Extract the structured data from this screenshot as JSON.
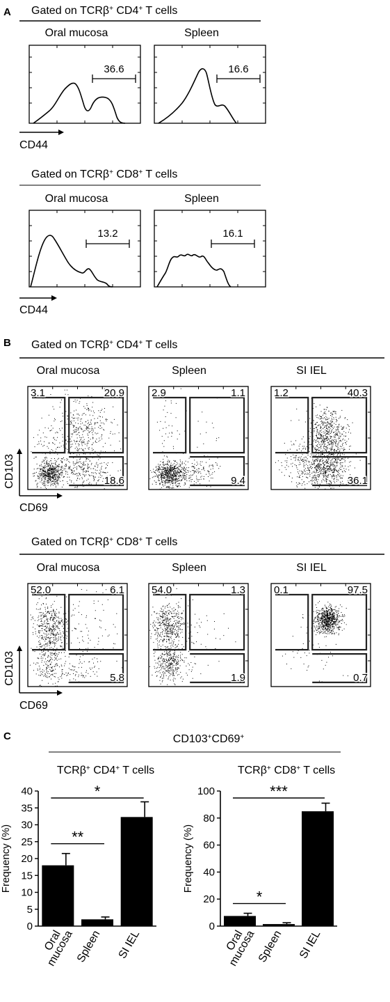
{
  "panel_a": {
    "letter": "A",
    "cd4": {
      "title_prefix": "Gated on TCRβ",
      "title_sup1": "+",
      "title_mid": " CD4",
      "title_sup2": "+",
      "title_suffix": " T cells",
      "tissue_1": "Oral mucosa",
      "tissue_2": "Spleen",
      "gate_1": "36.6",
      "gate_2": "16.6"
    },
    "cd8": {
      "title_prefix": "Gated on TCRβ",
      "title_sup1": "+",
      "title_mid": " CD8",
      "title_sup2": "+",
      "title_suffix": " T cells",
      "tissue_1": "Oral mucosa",
      "tissue_2": "Spleen",
      "gate_1": "13.2",
      "gate_2": "16.1"
    },
    "x_axis_label": "CD44"
  },
  "panel_b": {
    "letter": "B",
    "cd4": {
      "title_prefix": "Gated on TCRβ",
      "title_sup1": "+",
      "title_mid": " CD4",
      "title_sup2": "+",
      "title_suffix": " T cells",
      "tissues": [
        "Oral mucosa",
        "Spleen",
        "SI IEL"
      ],
      "quadrants": [
        {
          "tl": "3.1",
          "tr": "20.9",
          "br": "18.6"
        },
        {
          "tl": "2.9",
          "tr": "1.1",
          "br": "9.4"
        },
        {
          "tl": "1.2",
          "tr": "40.3",
          "br": "36.1"
        }
      ]
    },
    "cd8": {
      "title_prefix": "Gated on TCRβ",
      "title_sup1": "+",
      "title_mid": " CD8",
      "title_sup2": "+",
      "title_suffix": " T cells",
      "tissues": [
        "Oral mucosa",
        "Spleen",
        "SI IEL"
      ],
      "quadrants": [
        {
          "tl": "52.0",
          "tr": "6.1",
          "br": "5.8"
        },
        {
          "tl": "54.0",
          "tr": "1.3",
          "br": "1.9"
        },
        {
          "tl": "0.1",
          "tr": "97.5",
          "br": "0.7"
        }
      ]
    },
    "y_axis_label": "CD103",
    "x_axis_label": "CD69"
  },
  "panel_c": {
    "letter": "C",
    "header_1": "CD103",
    "header_sup1": "+",
    "header_2": "CD69",
    "header_sup2": "+"
  },
  "chart_data": [
    {
      "type": "bar",
      "title_prefix": "TCRβ",
      "title_sup1": "+",
      "title_mid": " CD4",
      "title_sup2": "+",
      "title_suffix": " T cells",
      "categories": [
        [
          "Oral",
          "mucosa"
        ],
        [
          "Spleen"
        ],
        [
          "SI IEL"
        ]
      ],
      "values": [
        18,
        2,
        32.3
      ],
      "errors": [
        3.5,
        0.7,
        4.5
      ],
      "ylabel": "Frequency (%)",
      "ylim": [
        0,
        40
      ],
      "yticks": [
        0,
        5,
        10,
        15,
        20,
        25,
        30,
        35,
        40
      ],
      "significance": [
        {
          "from": 0,
          "to": 1,
          "label": "**"
        },
        {
          "from": 0,
          "to": 2,
          "label": "*"
        }
      ],
      "bar_color": "#000000"
    },
    {
      "type": "bar",
      "title_prefix": "TCRβ",
      "title_sup1": "+",
      "title_mid": " CD8",
      "title_sup2": "+",
      "title_suffix": " T cells",
      "categories": [
        [
          "Oral",
          "mucosa"
        ],
        [
          "Spleen"
        ],
        [
          "SI IEL"
        ]
      ],
      "values": [
        7.5,
        1.5,
        85
      ],
      "errors": [
        2,
        1,
        6
      ],
      "ylabel": "Frequency (%)",
      "ylim": [
        0,
        100
      ],
      "yticks": [
        0,
        20,
        40,
        60,
        80,
        100
      ],
      "significance": [
        {
          "from": 0,
          "to": 1,
          "label": "*"
        },
        {
          "from": 0,
          "to": 2,
          "label": "***"
        }
      ],
      "bar_color": "#000000"
    }
  ]
}
